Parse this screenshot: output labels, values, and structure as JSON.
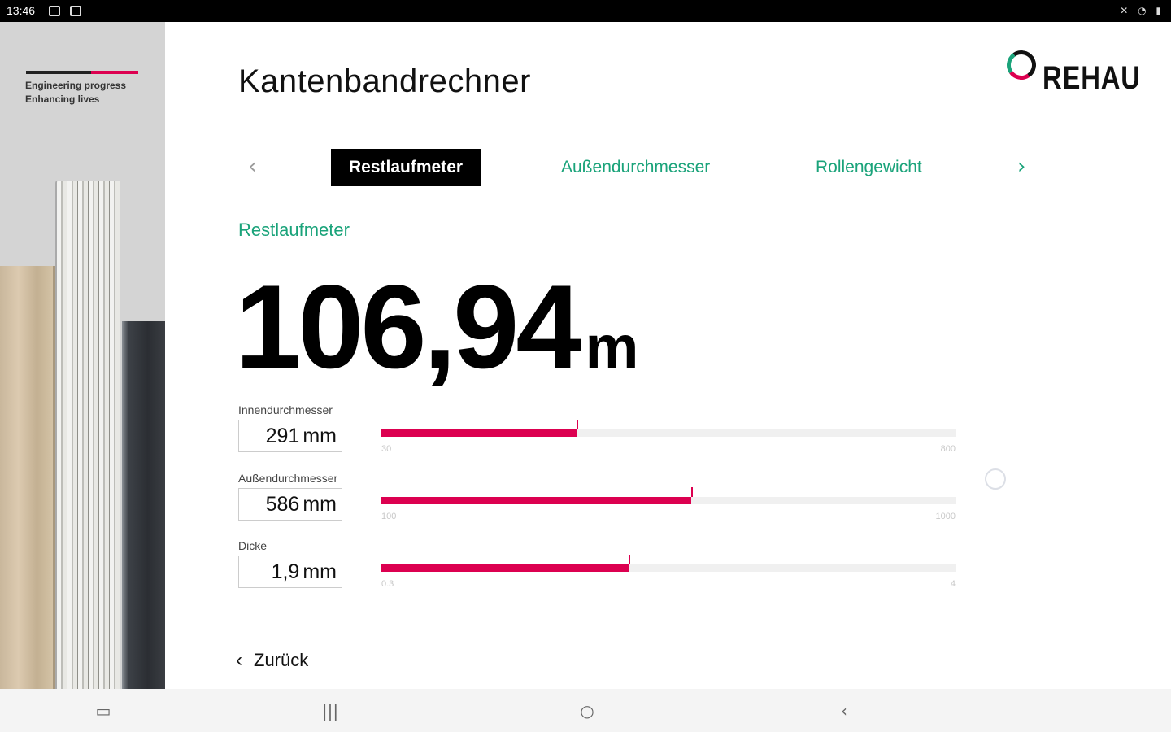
{
  "status_bar": {
    "time": "13:46",
    "right_icons": "✕ ◔ ▮"
  },
  "sidebar": {
    "tagline_line1": "Engineering progress",
    "tagline_line2": "Enhancing lives"
  },
  "app": {
    "title": "Kantenbandrechner",
    "logo_text": "REHAU"
  },
  "tabs": {
    "prev_icon": "‹",
    "next_icon": "›",
    "items": [
      "Restlaufmeter",
      "Außendurchmesser",
      "Rollengewicht"
    ],
    "active_index": 0
  },
  "result": {
    "label": "Restlaufmeter",
    "value": "106,94",
    "unit": "m"
  },
  "params": [
    {
      "label": "Innendurchmesser",
      "value": "291",
      "unit": "mm",
      "min": "30",
      "max": "800",
      "fill_fraction": 0.34
    },
    {
      "label": "Außendurchmesser",
      "value": "586",
      "unit": "mm",
      "min": "100",
      "max": "1000",
      "fill_fraction": 0.54
    },
    {
      "label": "Dicke",
      "value": "1,9",
      "unit": "mm",
      "min": "0.3",
      "max": "4",
      "fill_fraction": 0.43
    }
  ],
  "back": {
    "icon": "‹",
    "label": "Zurück"
  },
  "navbar": {
    "recent_icon": "|||",
    "home_icon": "○",
    "back_icon": "‹",
    "screen_icon": "▭"
  },
  "colors": {
    "accent_green": "#1aa37a",
    "accent_red": "#dc0050"
  }
}
